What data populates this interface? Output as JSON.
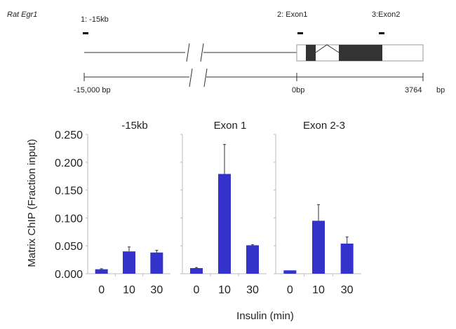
{
  "gene_map": {
    "gene_name": "Rat Egr1",
    "regions": [
      "1: -15kb",
      "2: Exon1",
      "3:Exon2"
    ],
    "scale_labels": [
      "-15,000  bp",
      "0bp",
      "3764",
      "bp"
    ]
  },
  "chart_data": {
    "type": "bar",
    "ylabel": "Matrix ChIP (Fraction input)",
    "xlabel": "Insulin (min)",
    "ylim": [
      0,
      0.25
    ],
    "yticks": [
      "0.000",
      "0.050",
      "0.100",
      "0.150",
      "0.200",
      "0.250"
    ],
    "ytick_values": [
      0,
      0.05,
      0.1,
      0.15,
      0.2,
      0.25
    ],
    "bar_color": "#3333cc",
    "panels": [
      {
        "title": "-15kb",
        "categories": [
          "0",
          "10",
          "30"
        ],
        "values": [
          0.008,
          0.04,
          0.038
        ],
        "error_tops": [
          0.009,
          0.048,
          0.042
        ]
      },
      {
        "title": "Exon 1",
        "categories": [
          "0",
          "10",
          "30"
        ],
        "values": [
          0.01,
          0.179,
          0.051
        ],
        "error_tops": [
          0.011,
          0.232,
          0.052
        ]
      },
      {
        "title": "Exon 2-3",
        "categories": [
          "0",
          "10",
          "30"
        ],
        "values": [
          0.006,
          0.095,
          0.054
        ],
        "error_tops": [
          0.006,
          0.124,
          0.066
        ]
      }
    ]
  }
}
